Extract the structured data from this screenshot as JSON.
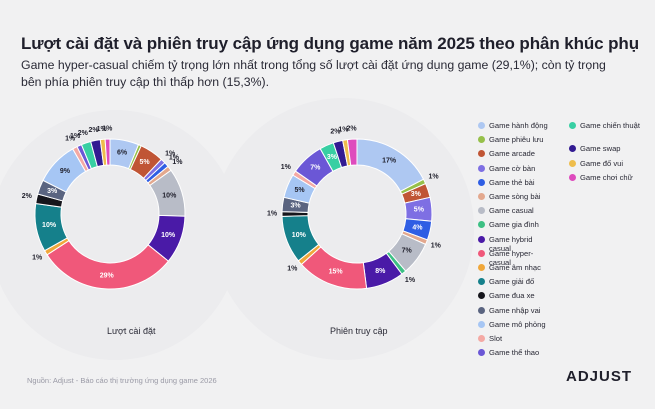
{
  "title": "Lượt cài đặt và phiên truy cập ứng dụng game năm 2025 theo phân khúc phụ",
  "subtitle": "Game hyper-casual chiếm tỷ trọng lớn nhất trong tổng số lượt cài đặt ứng dụng game (29,1%); còn tỷ trọng bên phía phiên truy cập thì thấp hơn (15,3%).",
  "source": "Nguồn: Adjust - Báo cáo thị trường ứng dụng game 2026",
  "brand": "ADJUST",
  "colors": {
    "background": "#f1f1f2",
    "Game hành động": "#aec8f2",
    "Game phiêu lưu": "#96c04a",
    "Game arcade": "#c05535",
    "Game cờ bàn": "#7e6fe3",
    "Game thẻ bài": "#2f5ee4",
    "Game sòng bài": "#e3a88e",
    "Game casual": "#b8bcc7",
    "Game gia đình": "#3dc084",
    "Game hybrid casual": "#4a1aa7",
    "Game hyper-casual": "#f0587a",
    "Game âm nhạc": "#f0a73a",
    "Game giải đố": "#15808b",
    "Game đua xe": "#16161c",
    "Game nhập vai": "#5a6480",
    "Game mô phỏng": "#a6c6f4",
    "Slot": "#f4a9a4",
    "Game thể thao": "#6b57d6",
    "Game chiến thuật": "#38cfa3",
    "Game swap": "#321b92",
    "Game đố vui": "#eebd4c",
    "Game chơi chữ": "#de4bbd"
  },
  "legend": [
    "Game hành động",
    "Game phiêu lưu",
    "Game arcade",
    "Game cờ bàn",
    "Game thẻ bài",
    "Game sòng bài",
    "Game casual",
    "Game gia đình",
    "Game hybrid casual",
    "Game hyper-casual",
    "Game âm nhạc",
    "Game giải đố",
    "Game đua xe",
    "Game nhập vai",
    "Game mô phỏng",
    "Slot",
    "Game thể thao",
    "Game chiến thuật",
    "Game swap",
    "Game đố vui",
    "Game chơi chữ"
  ],
  "chart_data": [
    {
      "type": "pie",
      "title": "Lượt cài đặt",
      "slices": [
        {
          "name": "Game hành động",
          "value": 6,
          "label": "6%"
        },
        {
          "name": "Game phiêu lưu",
          "value": 0.6,
          "label": ""
        },
        {
          "name": "Game arcade",
          "value": 5,
          "label": "5%"
        },
        {
          "name": "Game cờ bàn",
          "value": 1,
          "label": "1%"
        },
        {
          "name": "Game thẻ bài",
          "value": 1,
          "label": "1%"
        },
        {
          "name": "Game sòng bài",
          "value": 1,
          "label": "1%"
        },
        {
          "name": "Game casual",
          "value": 10,
          "label": "10%"
        },
        {
          "name": "Game hybrid casual",
          "value": 10,
          "label": "10%"
        },
        {
          "name": "Game hyper-casual",
          "value": 29,
          "label": "29%"
        },
        {
          "name": "Game âm nhạc",
          "value": 1,
          "label": "1%"
        },
        {
          "name": "Game giải đố",
          "value": 10,
          "label": "10%"
        },
        {
          "name": "Game đua xe",
          "value": 2,
          "label": "2%"
        },
        {
          "name": "Game nhập vai",
          "value": 3,
          "label": "3%"
        },
        {
          "name": "Game mô phỏng",
          "value": 9,
          "label": "9%"
        },
        {
          "name": "Slot",
          "value": 1,
          "label": "1%"
        },
        {
          "name": "Game thể thao",
          "value": 1,
          "label": "1%"
        },
        {
          "name": "Game chiến thuật",
          "value": 2,
          "label": "2%"
        },
        {
          "name": "Game swap",
          "value": 2,
          "label": "2%"
        },
        {
          "name": "Game đố vui",
          "value": 1,
          "label": "1%"
        },
        {
          "name": "Game chơi chữ",
          "value": 1,
          "label": "1%"
        }
      ]
    },
    {
      "type": "pie",
      "title": "Phiên truy cập",
      "slices": [
        {
          "name": "Game hành động",
          "value": 17,
          "label": "17%"
        },
        {
          "name": "Game phiêu lưu",
          "value": 1,
          "label": "1%"
        },
        {
          "name": "Game arcade",
          "value": 3,
          "label": "3%"
        },
        {
          "name": "Game cờ bàn",
          "value": 5,
          "label": "5%"
        },
        {
          "name": "Game thẻ bài",
          "value": 4,
          "label": "4%"
        },
        {
          "name": "Game sòng bài",
          "value": 1,
          "label": "1%"
        },
        {
          "name": "Game casual",
          "value": 7,
          "label": "7%"
        },
        {
          "name": "Game gia đình",
          "value": 1,
          "label": "1%"
        },
        {
          "name": "Game hybrid casual",
          "value": 8,
          "label": "8%"
        },
        {
          "name": "Game hyper-casual",
          "value": 15,
          "label": "15%"
        },
        {
          "name": "Game âm nhạc",
          "value": 1,
          "label": "1%"
        },
        {
          "name": "Game giải đố",
          "value": 10,
          "label": "10%"
        },
        {
          "name": "Game đua xe",
          "value": 1,
          "label": "1%"
        },
        {
          "name": "Game nhập vai",
          "value": 3,
          "label": "3%"
        },
        {
          "name": "Game mô phỏng",
          "value": 5,
          "label": "5%"
        },
        {
          "name": "Slot",
          "value": 1,
          "label": "1%"
        },
        {
          "name": "Game thể thao",
          "value": 7,
          "label": "7%"
        },
        {
          "name": "Game chiến thuật",
          "value": 3,
          "label": "3%"
        },
        {
          "name": "Game swap",
          "value": 2,
          "label": "2%"
        },
        {
          "name": "Game đố vui",
          "value": 1,
          "label": "1%"
        },
        {
          "name": "Game chơi chữ",
          "value": 2,
          "label": "2%"
        }
      ]
    }
  ]
}
